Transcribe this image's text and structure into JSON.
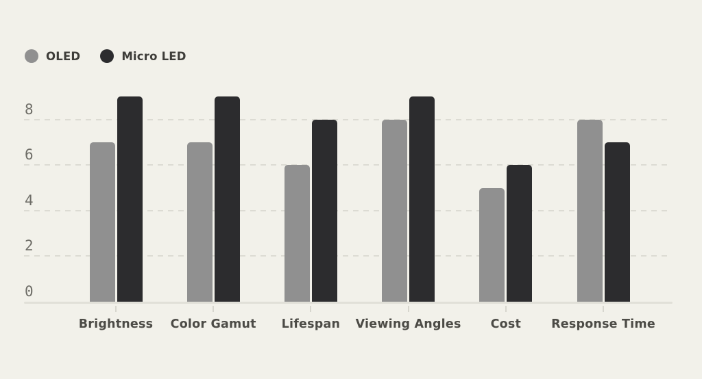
{
  "legend": {
    "items": [
      {
        "label": "OLED",
        "color": "#909090"
      },
      {
        "label": "Micro LED",
        "color": "#2c2c2e"
      }
    ]
  },
  "chart_data": {
    "type": "bar",
    "title": "",
    "categories": [
      "Brightness",
      "Color Gamut",
      "Lifespan",
      "Viewing Angles",
      "Cost",
      "Response Time"
    ],
    "series": [
      {
        "name": "OLED",
        "color": "#909090",
        "values": [
          7,
          7,
          6,
          8,
          5,
          8
        ]
      },
      {
        "name": "Micro LED",
        "color": "#2c2c2e",
        "values": [
          9,
          9,
          8,
          9,
          6,
          7
        ]
      }
    ],
    "xlabel": "",
    "ylabel": "",
    "yticks": [
      0,
      2,
      4,
      6,
      8
    ],
    "ylim": [
      0,
      9.5
    ],
    "grid": "horizontal-dashed",
    "legend_position": "top-left",
    "background": "#f2f1ea"
  }
}
